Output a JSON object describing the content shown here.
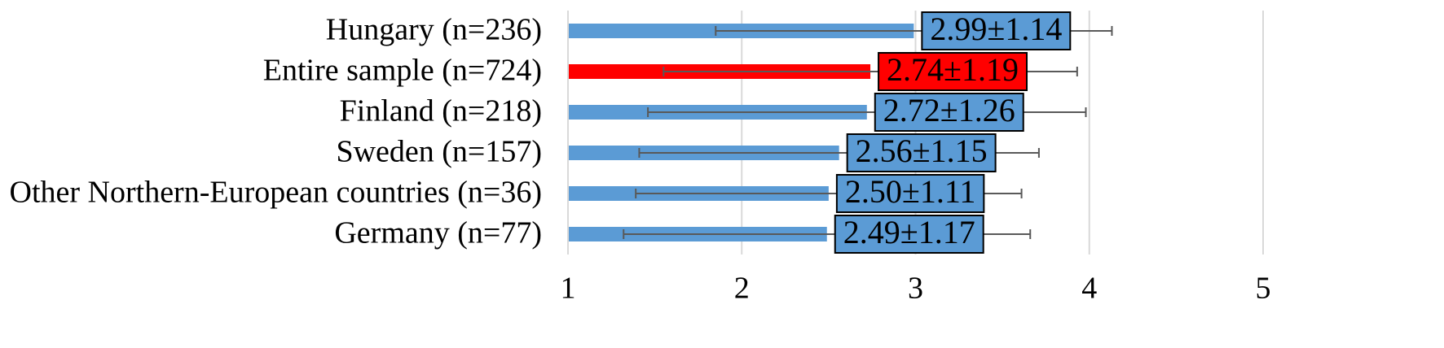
{
  "chart_data": {
    "type": "bar",
    "orientation": "horizontal",
    "categories": [
      "Hungary (n=236)",
      "Entire sample (n=724)",
      "Finland (n=218)",
      "Sweden (n=157)",
      "Other Northern-European countries (n=36)",
      "Germany (n=77)"
    ],
    "values": [
      2.99,
      2.74,
      2.72,
      2.56,
      2.5,
      2.49
    ],
    "errors": [
      1.14,
      1.19,
      1.26,
      1.15,
      1.11,
      1.17
    ],
    "value_labels": [
      "2.99±1.14",
      "2.74±1.19",
      "2.72±1.26",
      "2.56±1.15",
      "2.50±1.11",
      "2.49±1.17"
    ],
    "colors": [
      "#5b9bd5",
      "#ff0000",
      "#5b9bd5",
      "#5b9bd5",
      "#5b9bd5",
      "#5b9bd5"
    ],
    "xlim": [
      1,
      5
    ],
    "xticks": [
      1,
      2,
      3,
      4,
      5
    ],
    "grid": true
  }
}
